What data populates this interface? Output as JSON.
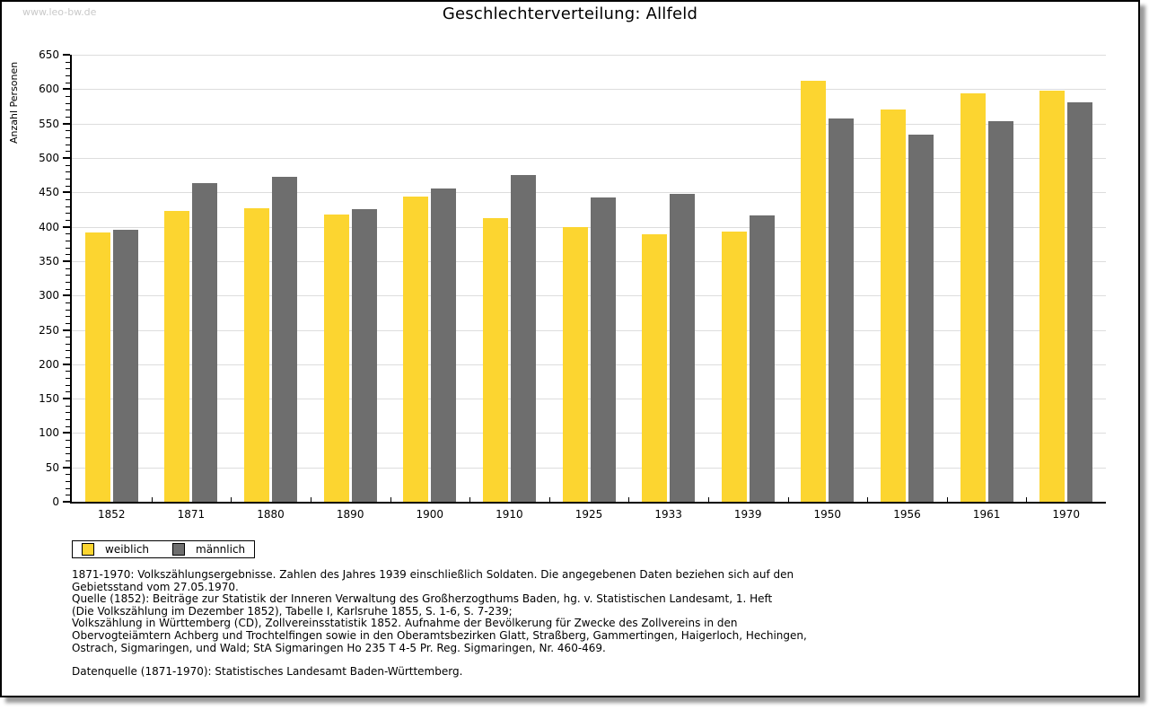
{
  "page": {
    "watermark": "www.leo-bw.de",
    "title": "Geschlechterverteilung: Allfeld"
  },
  "chart_data": {
    "type": "bar",
    "title": "Geschlechterverteilung: Allfeld",
    "xlabel": "",
    "ylabel": "Anzahl Personen",
    "categories": [
      "1852",
      "1871",
      "1880",
      "1890",
      "1900",
      "1910",
      "1925",
      "1933",
      "1939",
      "1950",
      "1956",
      "1961",
      "1970"
    ],
    "series": [
      {
        "name": "weiblich",
        "color": "#FCD530",
        "values": [
          392,
          423,
          427,
          418,
          444,
          413,
          400,
          389,
          393,
          612,
          570,
          594,
          598
        ]
      },
      {
        "name": "männlich",
        "color": "#6E6E6E",
        "values": [
          395,
          464,
          473,
          426,
          456,
          475,
          443,
          448,
          417,
          558,
          534,
          554,
          581
        ]
      }
    ],
    "ylim": [
      0,
      650
    ],
    "ytick_step": 50,
    "y_minor_step": 10,
    "grid": true,
    "legend_position": "bottom-left"
  },
  "notes": {
    "lines": [
      "1871-1970: Volkszählungsergebnisse. Zahlen des Jahres 1939 einschließlich Soldaten. Die angegebenen Daten beziehen sich auf den",
      "Gebietsstand vom 27.05.1970.",
      "Quelle (1852): Beiträge zur Statistik der Inneren Verwaltung des Großherzogthums Baden, hg. v. Statistischen Landesamt, 1. Heft",
      "(Die Volkszählung im Dezember 1852), Tabelle I, Karlsruhe 1855, S. 1-6, S. 7-239;",
      "Volkszählung in Württemberg (CD), Zollvereinsstatistik 1852. Aufnahme der Bevölkerung für Zwecke des Zollvereins in den",
      "Obervogteiämtern Achberg und Trochtelfingen sowie in den Oberamtsbezirken Glatt, Straßberg, Gammertingen, Haigerloch, Hechingen,",
      "Ostrach, Sigmaringen, und Wald; StA Sigmaringen Ho 235 T 4-5 Pr. Reg. Sigmaringen, Nr. 460-469."
    ],
    "datasource": "Datenquelle (1871-1970): Statistisches Landesamt Baden-Württemberg."
  },
  "colors": {
    "gridline": "#DDDDDD",
    "axis": "#000000",
    "watermark": "#C9C9C9"
  }
}
